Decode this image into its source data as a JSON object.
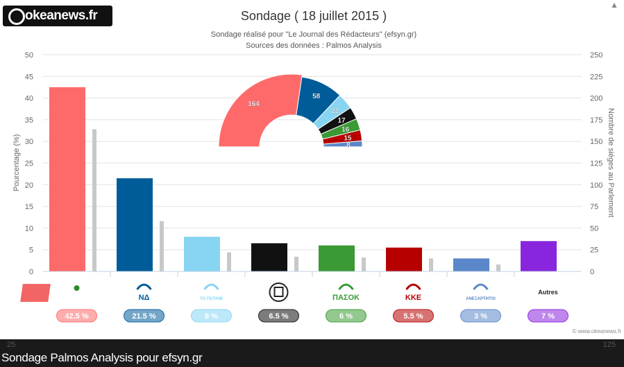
{
  "logo": {
    "text": "okeanews.fr"
  },
  "chart_data": {
    "type": "bar",
    "title": "Sondage ( 18 juillet 2015 )",
    "subtitle": "Sondage réalisé pour \"Le Journal des Rédacteurs\" (efsyn.gr)",
    "subtitle2": "Sources des données : Palmos Analysis",
    "ylabel": "Pourcentage (%)",
    "ylabel_right": "Nombre de sièges au Parlement",
    "ylim": [
      0,
      50
    ],
    "ylim_right": [
      0,
      250
    ],
    "yticks": [
      "0",
      "5",
      "10",
      "15",
      "20",
      "25",
      "30",
      "35",
      "40",
      "45",
      "50"
    ],
    "yticks_right": [
      "0",
      "25",
      "50",
      "75",
      "100",
      "125",
      "150",
      "175",
      "200",
      "225",
      "250"
    ],
    "categories": [
      "ΣΥΡΙΖΑ",
      "ΝΔ",
      "ΤΟ ΠΟΤΑΜΙ",
      "ΧΑ",
      "ΠΑΣΟΚ",
      "ΚΚΕ",
      "ΑΝΕΞΑΡΤΗΤΟΙ ΕΛΛΗΝΕΣ",
      "Autres"
    ],
    "logo_labels": [
      "",
      "ΝΔ",
      "ΤΟ ΠΟΤΑΜΙ",
      "",
      "ΠΑΣΟΚ",
      "ΚΚΕ",
      "ΑΝΕΞΑΡΤΗΤΟΙ",
      "Autres"
    ],
    "series": [
      {
        "values": [
          42.5,
          21.5,
          8,
          6.5,
          6,
          5.5,
          3,
          7
        ]
      },
      {
        "values": [
          164,
          58,
          22,
          17,
          16,
          15,
          8,
          null
        ],
        "color": "#c8c8c8"
      }
    ],
    "colors": [
      "#fe6a6a",
      "#005c99",
      "#87d5f3",
      "#111111",
      "#3a9a33",
      "#b60000",
      "#5b86c9",
      "#8a25de"
    ],
    "badges": [
      "42.5 %",
      "21.5 %",
      "8 %",
      "6.5 %",
      "6 %",
      "5.5 %",
      "3 %",
      "7 %"
    ],
    "seats": {
      "type": "pie",
      "style": "half-donut",
      "values": [
        164,
        58,
        22,
        17,
        16,
        15,
        8
      ],
      "labels": [
        "164",
        "58",
        "22",
        "17",
        "16",
        "15",
        "8"
      ],
      "colors": [
        "#fe6a6a",
        "#005c99",
        "#87d5f3",
        "#111111",
        "#3a9a33",
        "#b60000",
        "#5b86c9"
      ]
    },
    "credit": "© www.okeanews.fr",
    "grid": true
  },
  "caption": {
    "text": "Sondage Palmos Analysis pour efsyn.gr"
  }
}
